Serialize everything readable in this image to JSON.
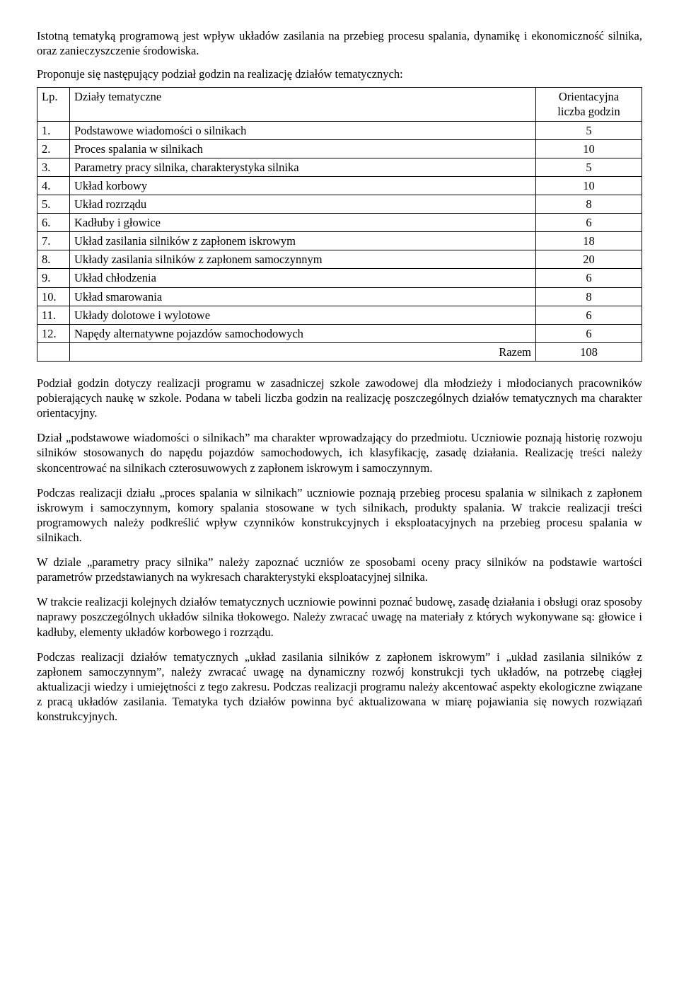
{
  "intro": {
    "p1": "Istotną tematyką programową jest wpływ układów zasilania na przebieg procesu spalania, dynamikę i ekonomiczność silnika, oraz zanieczyszczenie środowiska.",
    "p2": "Proponuje się następujący podział godzin na realizację działów tematycznych:"
  },
  "table": {
    "header": {
      "lp": "Lp.",
      "topic": "Działy tematyczne",
      "hours_line1": "Orientacyjna",
      "hours_line2": "liczba godzin"
    },
    "rows": [
      {
        "lp": "1.",
        "topic": "Podstawowe wiadomości o silnikach",
        "hours": "5"
      },
      {
        "lp": "2.",
        "topic": "Proces spalania w silnikach",
        "hours": "10"
      },
      {
        "lp": "3.",
        "topic": "Parametry pracy silnika, charakterystyka silnika",
        "hours": "5"
      },
      {
        "lp": "4.",
        "topic": "Układ korbowy",
        "hours": "10"
      },
      {
        "lp": "5.",
        "topic": "Układ rozrządu",
        "hours": "8"
      },
      {
        "lp": "6.",
        "topic": "Kadłuby i głowice",
        "hours": "6"
      },
      {
        "lp": "7.",
        "topic": "Układ zasilania silników z zapłonem iskrowym",
        "hours": "18"
      },
      {
        "lp": "8.",
        "topic": "Układy zasilania silników z zapłonem samoczynnym",
        "hours": "20"
      },
      {
        "lp": "9.",
        "topic": "Układ chłodzenia",
        "hours": "6"
      },
      {
        "lp": "10.",
        "topic": "Układ smarowania",
        "hours": "8"
      },
      {
        "lp": "11.",
        "topic": "Układy dolotowe i wylotowe",
        "hours": "6"
      },
      {
        "lp": "12.",
        "topic": "Napędy alternatywne pojazdów samochodowych",
        "hours": "6"
      }
    ],
    "total": {
      "label": "Razem",
      "hours": "108"
    }
  },
  "body": {
    "p1": "Podział godzin dotyczy realizacji programu w zasadniczej szkole zawodowej dla młodzieży i młodocianych pracowników pobierających naukę w szkole. Podana w tabeli liczba godzin na realizację poszczególnych działów tematycznych ma charakter orientacyjny.",
    "p2": "Dział „podstawowe wiadomości o silnikach” ma charakter wprowadzający do przedmiotu. Uczniowie poznają historię rozwoju silników stosowanych do napędu pojazdów samochodowych, ich klasyfikację, zasadę działania. Realizację treści należy skoncentrować na silnikach czterosuwowych z zapłonem iskrowym i samoczynnym.",
    "p3": " Podczas realizacji działu „proces spalania w silnikach” uczniowie poznają przebieg procesu spalania w silnikach z zapłonem iskrowym i samoczynnym, komory spalania stosowane w tych silnikach, produkty spalania. W trakcie realizacji treści programowych należy podkreślić wpływ czynników konstrukcyjnych i eksploatacyjnych na przebieg procesu spalania w silnikach.",
    "p4": "W dziale „parametry pracy silnika” należy zapoznać uczniów ze sposobami oceny pracy silników na podstawie wartości parametrów przedstawianych na wykresach charakterystyki eksploatacyjnej silnika.",
    "p5": "W trakcie realizacji kolejnych działów tematycznych uczniowie powinni poznać budowę, zasadę działania i obsługi oraz sposoby naprawy poszczególnych układów silnika tłokowego. Należy zwracać uwagę na materiały z których wykonywane są: głowice i kadłuby, elementy układów korbowego i rozrządu.",
    "p6": "Podczas realizacji działów tematycznych „układ zasilania silników z zapłonem iskrowym” i „układ zasilania silników z zapłonem samoczynnym”, należy zwracać uwagę na dynamiczny rozwój konstrukcji tych układów, na potrzebę ciągłej aktualizacji wiedzy i umiejętności z tego zakresu. Podczas realizacji programu należy akcentować aspekty ekologiczne związane z pracą układów zasilania. Tematyka tych działów powinna być aktualizowana w miarę pojawiania się nowych rozwiązań konstrukcyjnych."
  }
}
